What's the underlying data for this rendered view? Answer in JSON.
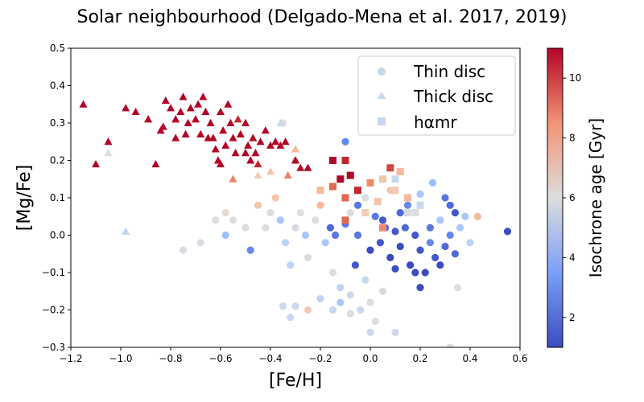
{
  "chart_data": {
    "type": "scatter",
    "title": "Solar neighbourhood (Delgado-Mena et al. 2017, 2019)",
    "xlabel": "[Fe/H]",
    "ylabel": "[Mg/Fe]",
    "xlim": [
      -1.2,
      0.6
    ],
    "ylim": [
      -0.3,
      0.5
    ],
    "xticks": [
      "−1.2",
      "−1.0",
      "−0.8",
      "−0.6",
      "−0.4",
      "−0.2",
      "0.0",
      "0.2",
      "0.4",
      "0.6"
    ],
    "yticks": [
      "−0.3",
      "−0.2",
      "−0.1",
      "0.0",
      "0.1",
      "0.2",
      "0.3",
      "0.4",
      "0.5"
    ],
    "grid": false,
    "legend_position": "top-right",
    "colorbar": {
      "label": "Isochrone age [Gyr]",
      "range": [
        1,
        11
      ],
      "ticks": [
        "2",
        "4",
        "6",
        "8",
        "10"
      ],
      "colormap": "coolwarm",
      "low_color": "#3b4cc0",
      "mid_color": "#dddddd",
      "high_color": "#b40426"
    },
    "series": [
      {
        "name": "Thin disc",
        "marker": "circle",
        "points": [
          [
            -0.75,
            -0.04
          ],
          [
            -0.68,
            -0.02
          ],
          [
            -0.62,
            0.04
          ],
          [
            -0.58,
            0.06
          ],
          [
            -0.55,
            0.04
          ],
          [
            -0.58,
            0.0
          ],
          [
            -0.5,
            0.02
          ],
          [
            -0.48,
            -0.04
          ],
          [
            -0.45,
            0.08
          ],
          [
            -0.42,
            0.02
          ],
          [
            -0.4,
            0.06
          ],
          [
            -0.38,
            0.1
          ],
          [
            -0.36,
            0.04
          ],
          [
            -0.34,
            -0.02
          ],
          [
            -0.32,
            -0.08
          ],
          [
            -0.3,
            0.02
          ],
          [
            -0.28,
            0.06
          ],
          [
            -0.26,
            0.0
          ],
          [
            -0.25,
            -0.06
          ],
          [
            -0.22,
            0.04
          ],
          [
            -0.2,
            0.08
          ],
          [
            -0.18,
            -0.02
          ],
          [
            -0.16,
            0.02
          ],
          [
            -0.15,
            -0.1
          ],
          [
            -0.12,
            -0.14
          ],
          [
            -0.1,
            0.03
          ],
          [
            -0.08,
            0.06
          ],
          [
            -0.06,
            -0.08
          ],
          [
            -0.05,
            0.0
          ],
          [
            -0.02,
            -0.12
          ],
          [
            0.0,
            -0.04
          ],
          [
            0.02,
            0.05
          ],
          [
            0.04,
            -0.02
          ],
          [
            0.06,
            0.02
          ],
          [
            0.08,
            -0.06
          ],
          [
            0.1,
            0.01
          ],
          [
            0.12,
            -0.03
          ],
          [
            0.14,
            0.02
          ],
          [
            0.16,
            -0.08
          ],
          [
            0.18,
            0.0
          ],
          [
            0.2,
            -0.04
          ],
          [
            0.22,
            -0.1
          ],
          [
            0.24,
            0.02
          ],
          [
            0.26,
            -0.06
          ],
          [
            0.28,
            0.04
          ],
          [
            0.3,
            -0.03
          ],
          [
            0.32,
            0.0
          ],
          [
            0.34,
            -0.05
          ],
          [
            0.36,
            0.02
          ],
          [
            0.4,
            -0.02
          ],
          [
            -0.35,
            -0.19
          ],
          [
            -0.3,
            -0.19
          ],
          [
            -0.32,
            -0.22
          ],
          [
            -0.25,
            -0.2
          ],
          [
            -0.2,
            -0.17
          ],
          [
            -0.15,
            -0.2
          ],
          [
            -0.12,
            -0.18
          ],
          [
            -0.08,
            -0.21
          ],
          [
            -0.04,
            -0.2
          ],
          [
            0.0,
            -0.26
          ],
          [
            0.02,
            -0.23
          ],
          [
            0.1,
            -0.26
          ],
          [
            0.32,
            -0.3
          ],
          [
            0.35,
            -0.14
          ],
          [
            -0.1,
            0.25
          ],
          [
            -0.35,
            0.3
          ],
          [
            -0.3,
            0.2
          ],
          [
            0.05,
            0.04
          ],
          [
            0.15,
            0.08
          ],
          [
            0.25,
            0.14
          ],
          [
            0.3,
            0.1
          ],
          [
            0.32,
            0.08
          ],
          [
            0.34,
            0.06
          ],
          [
            -0.05,
            0.08
          ],
          [
            0.12,
            0.06
          ],
          [
            0.18,
            -0.1
          ],
          [
            0.05,
            -0.15
          ],
          [
            0.0,
            -0.18
          ],
          [
            -0.08,
            -0.16
          ],
          [
            0.2,
            -0.14
          ],
          [
            0.38,
            0.05
          ],
          [
            0.43,
            0.05
          ],
          [
            0.55,
            0.01
          ],
          [
            -0.02,
            0.1
          ],
          [
            0.08,
            0.12
          ],
          [
            0.2,
            0.11
          ],
          [
            -0.14,
            0.0
          ],
          [
            0.1,
            -0.09
          ],
          [
            0.24,
            -0.02
          ],
          [
            0.28,
            -0.08
          ]
        ],
        "colors": [
          "#d8dce2",
          "#d8dce2",
          "#dcdddd",
          "#e6d7cf",
          "#dcdddd",
          "#9dbdfc",
          "#dcdddd",
          "#6788ee",
          "#f4c5ad",
          "#dcdddd",
          "#dcdddd",
          "#f4c5ad",
          "#aac7fd",
          "#bfd3f6",
          "#bfd3f6",
          "#d8dce2",
          "#dcdddd",
          "#aac7fd",
          "#d8dce2",
          "#dcdddd",
          "#f7b89c",
          "#aac7fd",
          "#4f69d9",
          "#dcdddd",
          "#bfd3f6",
          "#5977e3",
          "#dcdddd",
          "#4358cb",
          "#5977e3",
          "#cad8ef",
          "#3b4cc0",
          "#5977e3",
          "#4358cb",
          "#4f69d9",
          "#3b4cc0",
          "#4358cb",
          "#3b4cc0",
          "#4f69d9",
          "#3b4cc0",
          "#4358cb",
          "#4358cb",
          "#3b4cc0",
          "#5977e3",
          "#4358cb",
          "#aac7fd",
          "#4f69d9",
          "#6788ee",
          "#4f69d9",
          "#aac7fd",
          "#bfd3f6",
          "#cad8ef",
          "#cad8ef",
          "#cad8ef",
          "#f2cbb7",
          "#bfd3f6",
          "#cad8ef",
          "#aac7fd",
          "#dcdddd",
          "#cad8ef",
          "#cad8ef",
          "#dcdddd",
          "#cad8ef",
          "#dcdddd",
          "#dcdddd",
          "#6788ee",
          "#dcdddd",
          "#dcdddd",
          "#4358cb",
          "#6788ee",
          "#9dbdfc",
          "#5977e3",
          "#4f69d9",
          "#4358cb",
          "#5977e3",
          "#4f69d9",
          "#3b4cc0",
          "#d8dce2",
          "#dcdddd",
          "#cad8ef",
          "#3b4cc0",
          "#aac7fd",
          "#f7b89c",
          "#3b4cc0",
          "#dcdddd",
          "#f4c5ad",
          "#aac7fd",
          "#5977e3",
          "#3b4cc0",
          "#6788ee",
          "#3b4cc0"
        ]
      },
      {
        "name": "Thick disc",
        "marker": "triangle",
        "points": [
          [
            -1.15,
            0.35
          ],
          [
            -1.1,
            0.19
          ],
          [
            -1.05,
            0.25
          ],
          [
            -0.98,
            0.34
          ],
          [
            -0.94,
            0.33
          ],
          [
            -0.89,
            0.31
          ],
          [
            -0.86,
            0.19
          ],
          [
            -0.84,
            0.28
          ],
          [
            -0.82,
            0.36
          ],
          [
            -0.8,
            0.34
          ],
          [
            -0.78,
            0.31
          ],
          [
            -0.78,
            0.26
          ],
          [
            -0.76,
            0.33
          ],
          [
            -0.75,
            0.37
          ],
          [
            -0.73,
            0.3
          ],
          [
            -0.72,
            0.34
          ],
          [
            -0.7,
            0.31
          ],
          [
            -0.68,
            0.27
          ],
          [
            -0.67,
            0.37
          ],
          [
            -0.66,
            0.33
          ],
          [
            -0.64,
            0.3
          ],
          [
            -0.63,
            0.26
          ],
          [
            -0.62,
            0.23
          ],
          [
            -0.61,
            0.2
          ],
          [
            -0.6,
            0.33
          ],
          [
            -0.59,
            0.28
          ],
          [
            -0.58,
            0.24
          ],
          [
            -0.57,
            0.35
          ],
          [
            -0.56,
            0.3
          ],
          [
            -0.55,
            0.26
          ],
          [
            -0.54,
            0.22
          ],
          [
            -0.52,
            0.27
          ],
          [
            -0.5,
            0.3
          ],
          [
            -0.49,
            0.24
          ],
          [
            -0.47,
            0.26
          ],
          [
            -0.46,
            0.22
          ],
          [
            -0.44,
            0.25
          ],
          [
            -0.42,
            0.28
          ],
          [
            -0.4,
            0.24
          ],
          [
            -0.38,
            0.25
          ],
          [
            -0.36,
            0.24
          ],
          [
            -0.34,
            0.25
          ],
          [
            -0.3,
            0.2
          ],
          [
            -0.28,
            0.18
          ],
          [
            -0.83,
            0.29
          ],
          [
            -0.74,
            0.27
          ],
          [
            -0.69,
            0.35
          ],
          [
            -0.65,
            0.26
          ],
          [
            -0.6,
            0.19
          ],
          [
            -0.53,
            0.31
          ],
          [
            -0.48,
            0.2
          ],
          [
            -0.45,
            0.19
          ],
          [
            -1.05,
            0.22
          ],
          [
            -0.98,
            0.01
          ],
          [
            -0.36,
            0.3
          ],
          [
            -0.3,
            0.23
          ],
          [
            -0.45,
            0.16
          ],
          [
            -0.4,
            0.17
          ],
          [
            -0.55,
            0.15
          ],
          [
            -0.25,
            0.18
          ],
          [
            -0.33,
            0.16
          ],
          [
            -0.5,
            0.22
          ]
        ],
        "colors": [
          "#b40426",
          "#b40426",
          "#b40426",
          "#b40426",
          "#b40426",
          "#b40426",
          "#b40426",
          "#b40426",
          "#b40426",
          "#b40426",
          "#b40426",
          "#b40426",
          "#b40426",
          "#b40426",
          "#b40426",
          "#b40426",
          "#b40426",
          "#b40426",
          "#b40426",
          "#b40426",
          "#b40426",
          "#b40426",
          "#b40426",
          "#b40426",
          "#b40426",
          "#b40426",
          "#b40426",
          "#b40426",
          "#b40426",
          "#b40426",
          "#b40426",
          "#b40426",
          "#b40426",
          "#b40426",
          "#b40426",
          "#b40426",
          "#b40426",
          "#b40426",
          "#b40426",
          "#b40426",
          "#b40426",
          "#b40426",
          "#b40426",
          "#b40426",
          "#b40426",
          "#b40426",
          "#b40426",
          "#b40426",
          "#b40426",
          "#c0282f",
          "#b40426",
          "#c0282f",
          "#dcdddd",
          "#bfd3f6",
          "#cad8ef",
          "#f7b89c",
          "#f2cbb7",
          "#f4c5ad",
          "#ee8468",
          "#b40426",
          "#ee8468",
          "#b40426"
        ]
      },
      {
        "name": "hαmr",
        "marker": "square",
        "points": [
          [
            -0.15,
            0.2
          ],
          [
            -0.1,
            0.2
          ],
          [
            -0.12,
            0.15
          ],
          [
            -0.08,
            0.16
          ],
          [
            -0.05,
            0.12
          ],
          [
            -0.1,
            0.1
          ],
          [
            -0.15,
            0.13
          ],
          [
            0.0,
            0.14
          ],
          [
            0.05,
            0.15
          ],
          [
            0.1,
            0.12
          ],
          [
            0.15,
            0.1
          ],
          [
            0.12,
            0.17
          ],
          [
            0.08,
            0.18
          ],
          [
            0.18,
            0.06
          ],
          [
            0.2,
            0.08
          ],
          [
            0.03,
            0.09
          ],
          [
            -0.02,
            0.06
          ],
          [
            -0.2,
            0.12
          ],
          [
            -0.1,
            0.04
          ],
          [
            0.05,
            0.02
          ],
          [
            0.1,
            0.15
          ],
          [
            0.15,
            0.06
          ]
        ],
        "colors": [
          "#b40426",
          "#c0282f",
          "#b40426",
          "#b40426",
          "#c0282f",
          "#e26952",
          "#e26952",
          "#f08a6c",
          "#f4c5ad",
          "#f2cbb7",
          "#f7b89c",
          "#f7b89c",
          "#d0473d",
          "#dcdddd",
          "#cad8ef",
          "#f4c5ad",
          "#f2cbb7",
          "#f7b89c",
          "#e26952",
          "#f08a6c",
          "#cad8ef",
          "#d8dce2"
        ]
      }
    ]
  }
}
